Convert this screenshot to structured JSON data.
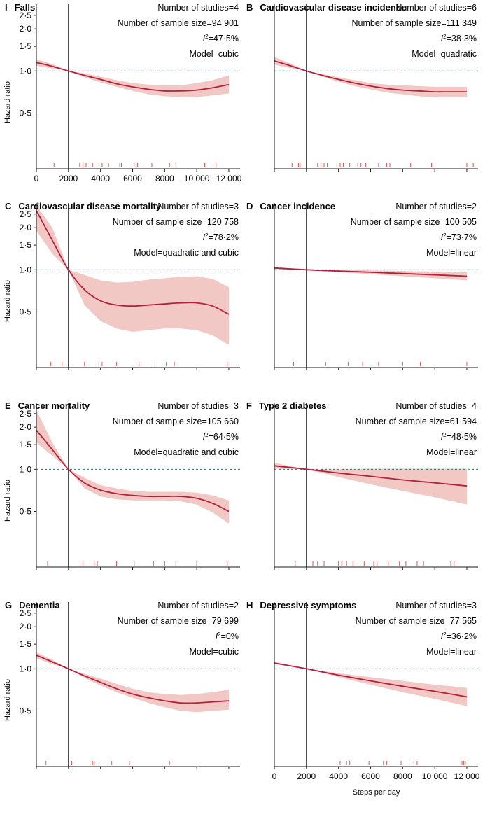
{
  "figure": {
    "ylabel": "Hazard ratio",
    "xlabel": "Steps per day",
    "y_ticks": [
      0.5,
      1.0,
      1.5,
      2.0,
      2.5
    ],
    "y_tick_labels": [
      "0·5",
      "1·0",
      "1·5",
      "2·0",
      "2·5"
    ],
    "x_ticks": [
      0,
      2000,
      4000,
      6000,
      8000,
      10000,
      12000
    ],
    "x_tick_labels": [
      "0",
      "2000",
      "4000",
      "6000",
      "8000",
      "10 000",
      "12 000"
    ],
    "reference_hr": 1.0,
    "reference_steps": 2000,
    "colors": {
      "curve": "#b3213f",
      "band": "#f2c8c5",
      "rug": "#d9534f",
      "axis": "#1a1a1a",
      "dashed": "#3d6b77"
    }
  },
  "chart_data": [
    {
      "type": "line",
      "letter": "I",
      "title": "Falls",
      "x_ticks_shown": true,
      "studies_text": "Number of studies=4",
      "sample_text": "Number of sample size=94 901",
      "i2_value": "=47·5%",
      "model_text": "Model=cubic",
      "xlim": [
        0,
        12700
      ],
      "ylim": [
        0.2,
        3.0
      ],
      "x": [
        0,
        1000,
        2000,
        3000,
        4000,
        5000,
        6000,
        7000,
        8000,
        9000,
        10000,
        11000,
        12000
      ],
      "hr": [
        1.15,
        1.08,
        1.0,
        0.93,
        0.87,
        0.81,
        0.77,
        0.74,
        0.72,
        0.72,
        0.73,
        0.76,
        0.8
      ],
      "lower": [
        1.09,
        1.04,
        1.0,
        0.9,
        0.83,
        0.77,
        0.72,
        0.68,
        0.66,
        0.65,
        0.65,
        0.67,
        0.69
      ],
      "upper": [
        1.21,
        1.12,
        1.0,
        0.96,
        0.91,
        0.86,
        0.82,
        0.8,
        0.79,
        0.79,
        0.82,
        0.86,
        0.93
      ],
      "rug": [
        1100,
        2700,
        2900,
        3100,
        3500,
        3900,
        4100,
        4500,
        5200,
        5300,
        6100,
        6300,
        7200,
        8300,
        8700,
        10500,
        11200
      ]
    },
    {
      "type": "line",
      "letter": "B",
      "title": "Cardiovascular disease incidence",
      "x_ticks_shown": false,
      "studies_text": "Number of studies=6",
      "sample_text": "Number of sample size=111 349",
      "i2_value": "=38·3%",
      "model_text": "Model=quadratic",
      "xlim": [
        0,
        12700
      ],
      "ylim": [
        0.2,
        3.0
      ],
      "x": [
        0,
        1000,
        2000,
        3000,
        4000,
        5000,
        6000,
        7000,
        8000,
        9000,
        10000,
        11000,
        12000
      ],
      "hr": [
        1.18,
        1.09,
        1.0,
        0.93,
        0.87,
        0.82,
        0.78,
        0.75,
        0.73,
        0.72,
        0.71,
        0.71,
        0.71
      ],
      "lower": [
        1.11,
        1.05,
        1.0,
        0.91,
        0.84,
        0.78,
        0.74,
        0.7,
        0.68,
        0.66,
        0.65,
        0.65,
        0.65
      ],
      "upper": [
        1.26,
        1.13,
        1.0,
        0.95,
        0.9,
        0.86,
        0.82,
        0.8,
        0.79,
        0.78,
        0.77,
        0.77,
        0.77
      ],
      "rug": [
        1100,
        1500,
        1600,
        2700,
        2900,
        3100,
        3300,
        3900,
        4100,
        4300,
        4700,
        5200,
        5400,
        5700,
        6500,
        7000,
        7200,
        8500,
        9800,
        12000,
        12200,
        12400
      ]
    },
    {
      "type": "line",
      "letter": "C",
      "title": "Cardiovascular disease mortality",
      "x_ticks_shown": false,
      "studies_text": "Number of studies=3",
      "sample_text": "Number of sample size=120 758",
      "i2_value": "=78·2%",
      "model_text": "Model=quadratic and cubic",
      "xlim": [
        0,
        12700
      ],
      "ylim": [
        0.2,
        3.0
      ],
      "x": [
        0,
        1000,
        2000,
        3000,
        4000,
        5000,
        6000,
        7000,
        8000,
        9000,
        10000,
        11000,
        12000
      ],
      "hr": [
        2.65,
        1.62,
        1.0,
        0.72,
        0.6,
        0.56,
        0.55,
        0.56,
        0.57,
        0.58,
        0.58,
        0.55,
        0.48
      ],
      "lower": [
        1.9,
        1.3,
        1.0,
        0.56,
        0.43,
        0.38,
        0.36,
        0.37,
        0.38,
        0.38,
        0.37,
        0.34,
        0.29
      ],
      "upper": [
        2.9,
        2.0,
        1.0,
        0.92,
        0.84,
        0.81,
        0.82,
        0.85,
        0.87,
        0.89,
        0.9,
        0.86,
        0.75
      ],
      "rug": [
        900,
        1600,
        3000,
        3900,
        4100,
        5000,
        6400,
        7400,
        8100,
        8600,
        11900
      ]
    },
    {
      "type": "line",
      "letter": "D",
      "title": "Cancer incidence",
      "x_ticks_shown": false,
      "studies_text": "Number of studies=2",
      "sample_text": "Number of sample size=100 505",
      "i2_value": "=73·7%",
      "model_text": "Model=linear",
      "xlim": [
        0,
        12700
      ],
      "ylim": [
        0.2,
        3.0
      ],
      "x": [
        0,
        2000,
        4000,
        6000,
        8000,
        10000,
        12000
      ],
      "hr": [
        1.03,
        1.0,
        0.98,
        0.96,
        0.94,
        0.92,
        0.9
      ],
      "lower": [
        1.01,
        1.0,
        0.96,
        0.93,
        0.9,
        0.87,
        0.84
      ],
      "upper": [
        1.05,
        1.0,
        1.0,
        0.99,
        0.98,
        0.97,
        0.96
      ],
      "rug": [
        1200,
        3200,
        4600,
        5500,
        6500,
        8000,
        9100,
        12000
      ]
    },
    {
      "type": "line",
      "letter": "E",
      "title": "Cancer mortality",
      "x_ticks_shown": false,
      "studies_text": "Number of studies=3",
      "sample_text": "Number of sample size=105 660",
      "i2_value": "=64·5%",
      "model_text": "Model=quadratic and cubic",
      "xlim": [
        0,
        12700
      ],
      "ylim": [
        0.2,
        3.0
      ],
      "x": [
        0,
        1000,
        2000,
        3000,
        4000,
        5000,
        6000,
        7000,
        8000,
        9000,
        10000,
        11000,
        12000
      ],
      "hr": [
        1.9,
        1.38,
        1.0,
        0.8,
        0.71,
        0.67,
        0.65,
        0.64,
        0.64,
        0.64,
        0.62,
        0.57,
        0.5
      ],
      "lower": [
        1.55,
        1.25,
        1.0,
        0.73,
        0.64,
        0.61,
        0.6,
        0.6,
        0.6,
        0.59,
        0.56,
        0.49,
        0.41
      ],
      "upper": [
        2.65,
        1.55,
        1.0,
        0.87,
        0.77,
        0.73,
        0.7,
        0.69,
        0.69,
        0.69,
        0.68,
        0.65,
        0.6
      ],
      "rug": [
        700,
        2900,
        3600,
        3800,
        5000,
        6100,
        7300,
        8000,
        8700,
        10000,
        11900
      ]
    },
    {
      "type": "line",
      "letter": "F",
      "title": "Type 2 diabetes",
      "x_ticks_shown": false,
      "studies_text": "Number of studies=4",
      "sample_text": "Number of sample size=61 594",
      "i2_value": "=48·5%",
      "model_text": "Model=linear",
      "xlim": [
        0,
        12700
      ],
      "ylim": [
        0.2,
        3.0
      ],
      "x": [
        0,
        2000,
        4000,
        6000,
        8000,
        10000,
        12000
      ],
      "hr": [
        1.06,
        1.0,
        0.94,
        0.89,
        0.84,
        0.8,
        0.76
      ],
      "lower": [
        1.01,
        1.0,
        0.88,
        0.78,
        0.7,
        0.63,
        0.56
      ],
      "upper": [
        1.11,
        1.0,
        1.0,
        1.01,
        1.01,
        1.01,
        1.01
      ],
      "rug": [
        1300,
        2400,
        2700,
        3100,
        4000,
        4200,
        4500,
        4900,
        5600,
        6200,
        6400,
        7100,
        7800,
        8200,
        8900,
        9300,
        11000,
        11200
      ]
    },
    {
      "type": "line",
      "letter": "G",
      "title": "Dementia",
      "x_ticks_shown": false,
      "studies_text": "Number of studies=2",
      "sample_text": "Number of sample size=79 699",
      "i2_value": "=0%",
      "model_text": "Model=cubic",
      "xlim": [
        0,
        12700
      ],
      "ylim": [
        0.2,
        3.0
      ],
      "x": [
        0,
        1000,
        2000,
        3000,
        4000,
        5000,
        6000,
        7000,
        8000,
        9000,
        10000,
        11000,
        12000
      ],
      "hr": [
        1.25,
        1.12,
        1.0,
        0.89,
        0.8,
        0.72,
        0.66,
        0.62,
        0.59,
        0.57,
        0.57,
        0.58,
        0.59
      ],
      "lower": [
        1.19,
        1.08,
        1.0,
        0.86,
        0.76,
        0.68,
        0.62,
        0.57,
        0.53,
        0.5,
        0.49,
        0.5,
        0.51
      ],
      "upper": [
        1.31,
        1.16,
        1.0,
        0.92,
        0.85,
        0.78,
        0.72,
        0.68,
        0.66,
        0.65,
        0.66,
        0.68,
        0.71
      ],
      "rug": [
        600,
        2200,
        3500,
        3600,
        4700,
        5800,
        8300
      ]
    },
    {
      "type": "line",
      "letter": "H",
      "title": "Depressive symptoms",
      "x_ticks_shown": true,
      "studies_text": "Number of studies=3",
      "sample_text": "Number of sample size=77 565",
      "i2_value": "=36·2%",
      "model_text": "Model=linear",
      "xlim": [
        0,
        12700
      ],
      "ylim": [
        0.2,
        3.0
      ],
      "x": [
        0,
        2000,
        4000,
        6000,
        8000,
        10000,
        12000
      ],
      "hr": [
        1.1,
        1.0,
        0.9,
        0.82,
        0.75,
        0.69,
        0.63
      ],
      "lower": [
        1.08,
        1.0,
        0.87,
        0.77,
        0.68,
        0.61,
        0.54
      ],
      "upper": [
        1.12,
        1.0,
        0.93,
        0.87,
        0.82,
        0.77,
        0.73
      ],
      "rug": [
        4100,
        4500,
        4700,
        5900,
        6800,
        7000,
        7900,
        8700,
        8900,
        11700,
        11800,
        11900
      ]
    }
  ]
}
